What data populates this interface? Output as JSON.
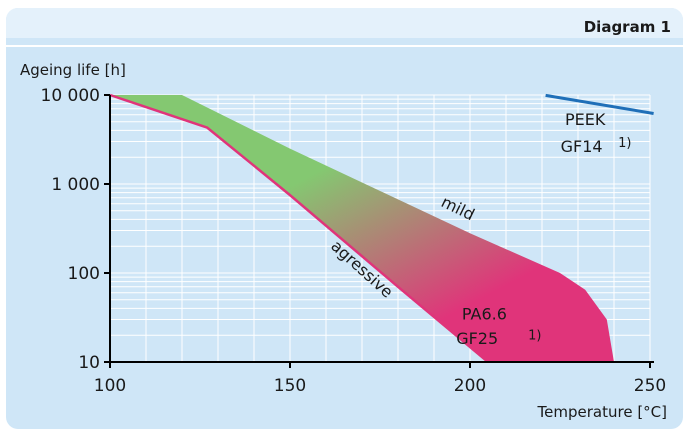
{
  "header": {
    "diagram_label": "Diagram 1"
  },
  "chart_data": {
    "type": "area",
    "ylabel": "Ageing life [h]",
    "xlabel": "Temperature [°C]",
    "xlim": [
      100,
      250
    ],
    "ylim": [
      10,
      10000
    ],
    "yscale": "log",
    "grid": true,
    "x_ticks": [
      100,
      150,
      200,
      250
    ],
    "x_tick_labels": [
      "100",
      "150",
      "200",
      "250"
    ],
    "y_ticks": [
      10,
      100,
      1000,
      10000
    ],
    "y_tick_labels": [
      "10",
      "100",
      "1 000",
      "10 000"
    ],
    "series": [
      {
        "name": "PA6.6 GF25",
        "upper": {
          "label": "mild",
          "x": [
            100,
            120,
            150,
            200,
            225,
            232,
            238,
            240
          ],
          "y": [
            10000,
            10000,
            2500,
            280,
            100,
            65,
            30,
            10
          ]
        },
        "lower": {
          "label": "agressive",
          "x": [
            100,
            127,
            150,
            180,
            205
          ],
          "y": [
            10000,
            4300,
            750,
            70,
            10
          ]
        },
        "colors": [
          "#84c871",
          "#e0347a"
        ]
      },
      {
        "name": "PEEK GF14",
        "x": [
          221,
          251
        ],
        "y": [
          9900,
          6200
        ],
        "color": "#1f6fb8"
      }
    ],
    "annotations": [
      {
        "text": "mild",
        "x": 196,
        "y": 470,
        "rotate": 26
      },
      {
        "text": "agressive",
        "x": 169,
        "y": 100,
        "rotate": 42
      },
      {
        "text": "PA6.6",
        "x": 204,
        "y": 30
      },
      {
        "text": "GF25",
        "x": 202,
        "y": 16
      },
      {
        "text": "1)",
        "x": 218,
        "y": 18
      },
      {
        "text": "PEEK",
        "x": 232,
        "y": 4600
      },
      {
        "text": "GF14",
        "x": 231,
        "y": 2300
      },
      {
        "text": "1)",
        "x": 243,
        "y": 2600
      }
    ]
  }
}
